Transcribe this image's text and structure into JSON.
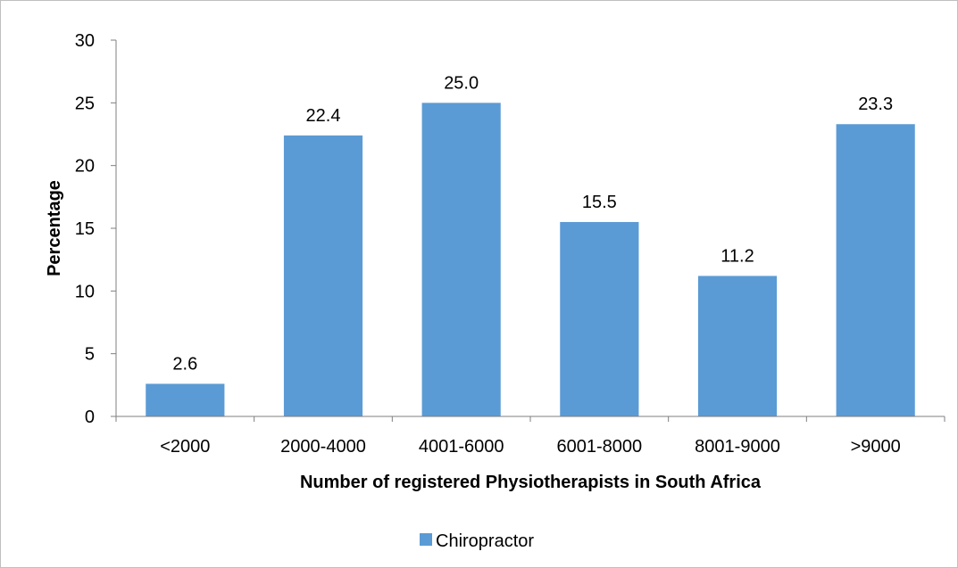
{
  "chart_data": {
    "type": "bar",
    "categories": [
      "<2000",
      "2000-4000",
      "4001-6000",
      "6001-8000",
      "8001-9000",
      ">9000"
    ],
    "series": [
      {
        "name": "Chiropractor",
        "values": [
          2.6,
          22.4,
          25.0,
          15.5,
          11.2,
          23.3
        ],
        "color": "#5B9BD5"
      }
    ],
    "data_labels": [
      "2.6",
      "22.4",
      "25.0",
      "15.5",
      "11.2",
      "23.3"
    ],
    "title": "",
    "xlabel": "Number of registered Physiotherapists in South Africa",
    "ylabel": "Percentage",
    "ylim": [
      0,
      30
    ],
    "yticks": [
      0,
      5,
      10,
      15,
      20,
      25,
      30
    ],
    "grid": false,
    "legend_position": "bottom"
  }
}
